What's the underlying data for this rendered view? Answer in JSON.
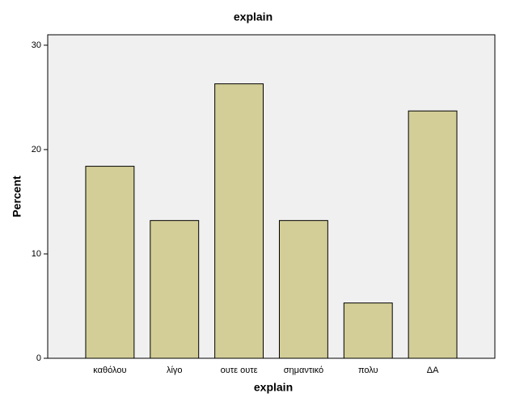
{
  "chart_data": {
    "type": "bar",
    "title": "explain",
    "x_label": "explain",
    "y_label": "Percent",
    "categories": [
      "καθόλου",
      "λίγο",
      "ουτε ουτε",
      "σημαντικό",
      "πολυ",
      "ΔΑ"
    ],
    "values": [
      18.4,
      13.2,
      26.3,
      13.2,
      5.3,
      23.7
    ],
    "color": "#d3ce97",
    "ylim": [
      0,
      31
    ],
    "yticks": [
      0,
      10,
      20,
      30
    ],
    "grid": false
  }
}
